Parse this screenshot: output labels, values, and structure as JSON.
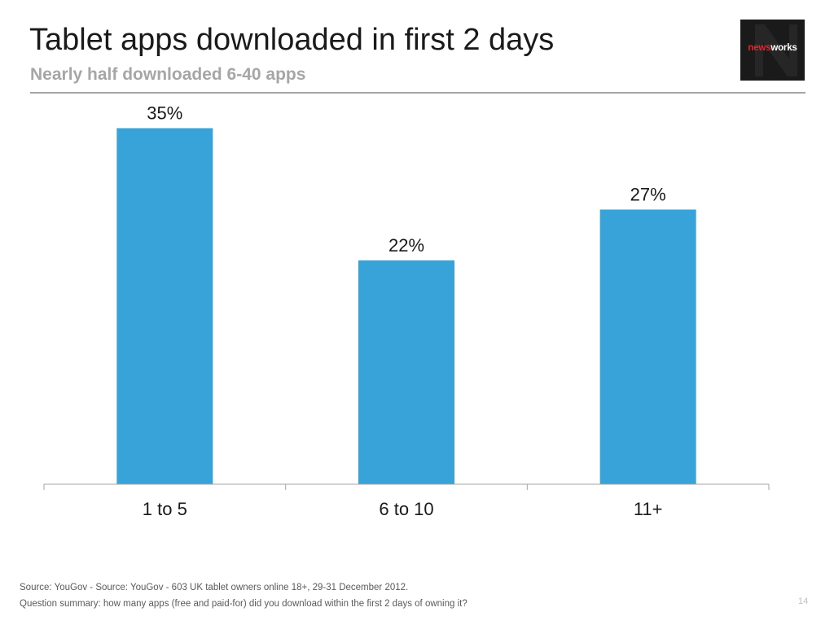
{
  "header": {
    "title": "Tablet apps downloaded in first 2 days",
    "subtitle": "Nearly half downloaded 6-40 apps"
  },
  "logo": {
    "prefix": "news",
    "suffix": "works",
    "letter": "N"
  },
  "colors": {
    "bar": "#38a3d9",
    "axis": "#a6a6a6",
    "text": "#1a1a1a",
    "logo_bg": "#1a1a1a",
    "logo_accent": "#e8232b"
  },
  "chart_data": {
    "type": "bar",
    "title": "",
    "xlabel": "",
    "ylabel": "",
    "categories": [
      "1 to 5",
      "6 to 10",
      "11+"
    ],
    "values": [
      35,
      22,
      27
    ],
    "data_labels": [
      "35%",
      "22%",
      "27%"
    ],
    "ylim": [
      0,
      40
    ],
    "grid": false,
    "legend": "none"
  },
  "footer": {
    "source": "Source: YouGov - Source: YouGov - 603 UK tablet  owners online 18+, 29-31 December 2012.",
    "question": "Question summary: how many apps (free and paid-for) did you download within the first 2 days of owning it?"
  },
  "page_number": "14"
}
